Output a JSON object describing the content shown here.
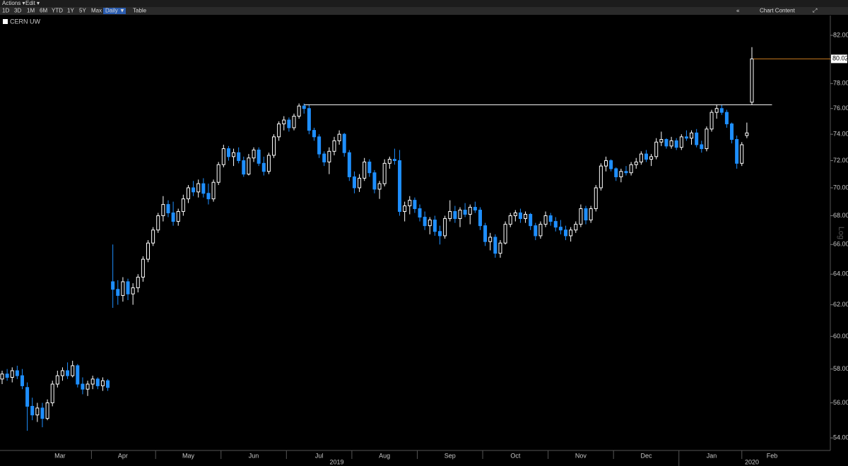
{
  "toolbar": {
    "menus": [
      "Actions ▾",
      "Edit ▾"
    ],
    "ranges": [
      "1D",
      "3D",
      "1M",
      "6M",
      "YTD",
      "1Y",
      "5Y",
      "Max"
    ],
    "frequency": "Daily ▼",
    "table": "Table",
    "chart_content": "Chart Content"
  },
  "chart_data": {
    "type": "candlestick",
    "series_name": "CERN UW",
    "up_color": "#ffffff",
    "down_color": "#1e8fff",
    "log": true,
    "scale_label": "Log",
    "ylim": [
      53.3,
      83.7
    ],
    "yticks": [
      {
        "value": 54,
        "label": "54.00"
      },
      {
        "value": 56,
        "label": "56.00"
      },
      {
        "value": 58,
        "label": "58.00"
      },
      {
        "value": 60,
        "label": "60.00"
      },
      {
        "value": 62,
        "label": "62.00"
      },
      {
        "value": 64,
        "label": "64.00"
      },
      {
        "value": 66,
        "label": "66.00"
      },
      {
        "value": 68,
        "label": "68.00"
      },
      {
        "value": 70,
        "label": "70.00"
      },
      {
        "value": 72,
        "label": "72.00"
      },
      {
        "value": 74,
        "label": "74.00"
      },
      {
        "value": 76,
        "label": "76.00"
      },
      {
        "value": 78,
        "label": "78.00"
      },
      {
        "value": 80,
        "label": "80.00"
      },
      {
        "value": 82,
        "label": "82.00"
      }
    ],
    "xticks": [
      {
        "value": 11.5,
        "label": "Mar"
      },
      {
        "value": 24,
        "label": "Apr"
      },
      {
        "value": 37,
        "label": "May"
      },
      {
        "value": 50,
        "label": "Jun"
      },
      {
        "value": 63,
        "label": "Jul"
      },
      {
        "value": 76,
        "label": "Aug"
      },
      {
        "value": 89,
        "label": "Sep"
      },
      {
        "value": 102,
        "label": "Oct"
      },
      {
        "value": 115,
        "label": "Nov"
      },
      {
        "value": 128,
        "label": "Dec"
      },
      {
        "value": 141,
        "label": "Jan"
      },
      {
        "value": 153,
        "label": "Feb"
      }
    ],
    "year_ticks": [
      {
        "value": 66.5,
        "label": "2019"
      },
      {
        "value": 149,
        "label": "2020"
      }
    ],
    "last_price": 80.02,
    "last_price_color": "#c87a1e",
    "trendline": {
      "x": [
        60,
        153
      ],
      "y": [
        76.3,
        76.3
      ],
      "color": "#ffffff"
    },
    "ohlc": [
      [
        57.4,
        57.9,
        57.1,
        57.7
      ],
      [
        57.7,
        58.0,
        57.3,
        57.5
      ],
      [
        57.5,
        58.1,
        57.2,
        57.9
      ],
      [
        57.9,
        58.2,
        57.4,
        57.6
      ],
      [
        57.6,
        58.0,
        56.8,
        57.0
      ],
      [
        56.9,
        57.2,
        54.4,
        55.8
      ],
      [
        55.8,
        56.3,
        55.0,
        55.3
      ],
      [
        55.3,
        56.0,
        54.9,
        55.7
      ],
      [
        55.7,
        56.0,
        54.6,
        55.1
      ],
      [
        55.1,
        56.2,
        55.0,
        56.0
      ],
      [
        56.0,
        57.3,
        55.8,
        57.1
      ],
      [
        57.1,
        57.9,
        56.9,
        57.6
      ],
      [
        57.6,
        58.1,
        57.3,
        57.9
      ],
      [
        57.9,
        58.4,
        57.4,
        57.6
      ],
      [
        57.6,
        58.5,
        57.5,
        58.2
      ],
      [
        58.2,
        58.3,
        56.9,
        57.1
      ],
      [
        57.1,
        57.5,
        56.5,
        56.8
      ],
      [
        56.8,
        57.3,
        56.4,
        57.1
      ],
      [
        57.1,
        57.6,
        56.8,
        57.4
      ],
      [
        57.4,
        57.5,
        56.8,
        57.0
      ],
      [
        57.0,
        57.5,
        56.7,
        57.3
      ],
      [
        57.3,
        57.4,
        56.7,
        56.9
      ],
      [
        63.5,
        66.0,
        61.8,
        63.0
      ],
      [
        63.0,
        63.6,
        62.0,
        62.6
      ],
      [
        62.6,
        63.8,
        62.2,
        63.5
      ],
      [
        63.5,
        63.7,
        62.3,
        62.7
      ],
      [
        62.7,
        63.4,
        62.0,
        63.1
      ],
      [
        63.1,
        64.0,
        62.8,
        63.8
      ],
      [
        63.8,
        65.2,
        63.5,
        65.0
      ],
      [
        65.0,
        66.3,
        64.8,
        66.1
      ],
      [
        66.1,
        67.2,
        65.9,
        67.0
      ],
      [
        67.0,
        68.2,
        66.8,
        68.0
      ],
      [
        68.0,
        69.4,
        67.6,
        68.8
      ],
      [
        68.8,
        69.1,
        67.9,
        68.2
      ],
      [
        68.2,
        69.0,
        67.3,
        67.6
      ],
      [
        67.6,
        68.5,
        67.3,
        68.3
      ],
      [
        68.3,
        69.5,
        68.0,
        69.2
      ],
      [
        69.2,
        70.2,
        68.9,
        70.0
      ],
      [
        70.0,
        70.5,
        69.4,
        69.7
      ],
      [
        69.7,
        70.6,
        69.3,
        70.3
      ],
      [
        70.3,
        70.7,
        69.3,
        69.6
      ],
      [
        69.6,
        70.3,
        68.8,
        69.2
      ],
      [
        69.2,
        70.6,
        69.0,
        70.4
      ],
      [
        70.4,
        71.9,
        70.2,
        71.7
      ],
      [
        71.7,
        73.2,
        71.5,
        72.9
      ],
      [
        72.9,
        73.1,
        72.0,
        72.3
      ],
      [
        72.3,
        72.9,
        71.6,
        72.6
      ],
      [
        72.6,
        73.0,
        71.8,
        72.0
      ],
      [
        72.0,
        72.3,
        70.8,
        71.0
      ],
      [
        71.0,
        72.5,
        70.9,
        72.2
      ],
      [
        72.2,
        73.0,
        71.9,
        72.8
      ],
      [
        72.8,
        73.0,
        71.6,
        71.8
      ],
      [
        71.8,
        72.3,
        70.9,
        71.2
      ],
      [
        71.2,
        72.6,
        71.0,
        72.4
      ],
      [
        72.4,
        74.0,
        72.2,
        73.8
      ],
      [
        73.8,
        75.0,
        73.5,
        74.8
      ],
      [
        74.8,
        75.4,
        74.3,
        75.1
      ],
      [
        75.1,
        75.3,
        74.2,
        74.5
      ],
      [
        74.5,
        75.6,
        74.3,
        75.4
      ],
      [
        75.4,
        76.4,
        75.2,
        76.2
      ],
      [
        76.2,
        76.4,
        75.6,
        76.0
      ],
      [
        76.0,
        76.3,
        74.0,
        74.3
      ],
      [
        74.3,
        74.5,
        73.5,
        73.8
      ],
      [
        73.8,
        74.0,
        72.2,
        72.5
      ],
      [
        72.5,
        72.7,
        71.6,
        71.9
      ],
      [
        71.9,
        73.0,
        71.0,
        72.7
      ],
      [
        72.7,
        73.8,
        72.4,
        73.5
      ],
      [
        73.5,
        74.3,
        73.2,
        74.0
      ],
      [
        74.0,
        74.1,
        72.3,
        72.6
      ],
      [
        72.6,
        72.8,
        70.5,
        70.8
      ],
      [
        70.8,
        71.2,
        69.6,
        70.0
      ],
      [
        70.0,
        71.0,
        69.7,
        70.7
      ],
      [
        70.7,
        72.2,
        70.5,
        71.9
      ],
      [
        71.9,
        72.1,
        70.8,
        71.1
      ],
      [
        71.1,
        71.3,
        69.6,
        69.9
      ],
      [
        69.9,
        70.5,
        69.2,
        70.3
      ],
      [
        70.3,
        72.1,
        70.1,
        71.8
      ],
      [
        71.8,
        72.3,
        71.4,
        72.1
      ],
      [
        72.1,
        72.9,
        71.7,
        72.0
      ],
      [
        72.0,
        72.8,
        68.0,
        68.3
      ],
      [
        68.3,
        69.0,
        67.6,
        68.7
      ],
      [
        68.7,
        69.4,
        68.1,
        69.1
      ],
      [
        69.1,
        69.3,
        68.2,
        68.5
      ],
      [
        68.5,
        68.8,
        67.6,
        67.9
      ],
      [
        67.9,
        68.3,
        67.0,
        67.3
      ],
      [
        67.3,
        67.9,
        66.7,
        67.7
      ],
      [
        67.7,
        68.0,
        66.6,
        66.9
      ],
      [
        66.9,
        67.3,
        66.0,
        66.6
      ],
      [
        66.6,
        68.0,
        66.4,
        67.8
      ],
      [
        67.8,
        69.1,
        67.6,
        68.3
      ],
      [
        68.3,
        68.7,
        67.5,
        67.8
      ],
      [
        67.8,
        68.6,
        67.2,
        68.4
      ],
      [
        68.4,
        68.9,
        67.9,
        68.1
      ],
      [
        68.1,
        68.8,
        67.4,
        68.6
      ],
      [
        68.6,
        69.0,
        68.2,
        68.4
      ],
      [
        68.4,
        68.6,
        67.0,
        67.3
      ],
      [
        67.3,
        67.5,
        65.9,
        66.2
      ],
      [
        66.2,
        66.8,
        65.6,
        66.5
      ],
      [
        66.5,
        66.7,
        65.1,
        65.4
      ],
      [
        65.4,
        66.3,
        65.1,
        66.1
      ],
      [
        66.1,
        67.6,
        66.0,
        67.4
      ],
      [
        67.4,
        68.2,
        67.2,
        68.0
      ],
      [
        68.0,
        68.4,
        67.6,
        68.2
      ],
      [
        68.2,
        68.5,
        67.5,
        67.8
      ],
      [
        67.8,
        68.3,
        67.5,
        68.1
      ],
      [
        68.1,
        68.2,
        67.0,
        67.3
      ],
      [
        67.3,
        67.5,
        66.3,
        66.6
      ],
      [
        66.6,
        67.6,
        66.4,
        67.4
      ],
      [
        67.4,
        68.3,
        67.2,
        68.0
      ],
      [
        68.0,
        68.2,
        67.3,
        67.6
      ],
      [
        67.6,
        67.9,
        66.9,
        67.2
      ],
      [
        67.2,
        67.7,
        66.7,
        67.0
      ],
      [
        67.0,
        67.3,
        66.3,
        66.6
      ],
      [
        66.6,
        67.2,
        66.2,
        67.0
      ],
      [
        67.0,
        67.6,
        66.8,
        67.4
      ],
      [
        67.4,
        68.8,
        67.2,
        68.5
      ],
      [
        68.5,
        68.7,
        67.4,
        67.7
      ],
      [
        67.7,
        68.7,
        67.5,
        68.5
      ],
      [
        68.5,
        70.2,
        68.3,
        70.0
      ],
      [
        70.0,
        71.8,
        69.8,
        71.6
      ],
      [
        71.6,
        72.3,
        71.2,
        72.0
      ],
      [
        72.0,
        72.1,
        71.2,
        71.4
      ],
      [
        71.4,
        71.5,
        70.5,
        70.8
      ],
      [
        70.8,
        71.4,
        70.4,
        71.2
      ],
      [
        71.2,
        71.6,
        70.9,
        71.1
      ],
      [
        71.1,
        71.9,
        70.9,
        71.7
      ],
      [
        71.7,
        72.2,
        71.4,
        71.9
      ],
      [
        71.9,
        72.7,
        71.7,
        72.5
      ],
      [
        72.5,
        72.8,
        71.9,
        72.1
      ],
      [
        72.1,
        72.5,
        71.6,
        72.3
      ],
      [
        72.3,
        73.7,
        72.1,
        73.4
      ],
      [
        73.4,
        74.2,
        73.1,
        73.6
      ],
      [
        73.6,
        73.7,
        72.9,
        73.1
      ],
      [
        73.1,
        73.8,
        72.9,
        73.5
      ],
      [
        73.5,
        73.7,
        72.8,
        73.0
      ],
      [
        73.0,
        74.0,
        72.8,
        73.8
      ],
      [
        73.8,
        74.3,
        73.5,
        73.7
      ],
      [
        73.7,
        74.3,
        73.2,
        74.1
      ],
      [
        74.1,
        74.4,
        73.0,
        73.2
      ],
      [
        73.2,
        73.5,
        72.6,
        72.9
      ],
      [
        72.9,
        74.6,
        72.7,
        74.4
      ],
      [
        74.4,
        75.9,
        74.2,
        75.7
      ],
      [
        75.7,
        76.3,
        75.2,
        76.0
      ],
      [
        76.0,
        76.3,
        75.5,
        75.7
      ],
      [
        75.7,
        75.9,
        74.5,
        74.8
      ],
      [
        74.8,
        74.9,
        73.3,
        73.6
      ],
      [
        73.6,
        73.9,
        71.4,
        71.8
      ],
      [
        71.8,
        73.4,
        71.6,
        73.2
      ],
      [
        73.9,
        74.9,
        73.7,
        74.1
      ],
      [
        76.5,
        81.0,
        76.3,
        80.02
      ]
    ]
  }
}
